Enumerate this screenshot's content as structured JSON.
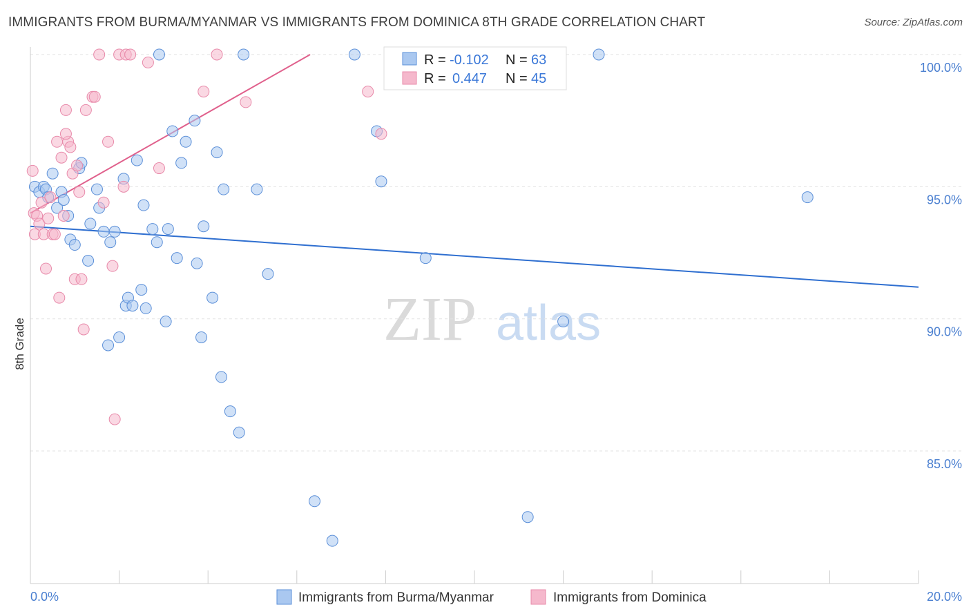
{
  "title": "IMMIGRANTS FROM BURMA/MYANMAR VS IMMIGRANTS FROM DOMINICA 8TH GRADE CORRELATION CHART",
  "source": "Source: ZipAtlas.com",
  "watermark": {
    "part1": "ZIP",
    "part2": "atlas"
  },
  "chart_data": {
    "type": "scatter",
    "xlabel": "",
    "ylabel": "8th Grade",
    "xlim": [
      0,
      20
    ],
    "ylim": [
      80.0,
      101.0
    ],
    "x_ticks": [
      0,
      2,
      4,
      6,
      8,
      10,
      12,
      14,
      16,
      18,
      20
    ],
    "x_tick_labels": [
      {
        "value": 0,
        "label": "0.0%"
      },
      {
        "value": 20,
        "label": "20.0%"
      }
    ],
    "y_ticks": [
      {
        "value": 100,
        "label": "100.0%"
      },
      {
        "value": 95,
        "label": "95.0%"
      },
      {
        "value": 90,
        "label": "90.0%"
      },
      {
        "value": 85,
        "label": "85.0%"
      }
    ],
    "legend": {
      "position": "top-center",
      "rows": [
        {
          "r_label": "R =",
          "r_value": "-0.102",
          "n_label": "N =",
          "n_value": "63",
          "color": "#aac8f0"
        },
        {
          "r_label": "R =",
          "r_value": "0.447",
          "n_label": "N =",
          "n_value": "45",
          "color": "#f5b8cc"
        }
      ]
    },
    "series": [
      {
        "name": "Immigrants from Burma/Myanmar",
        "color": "#5b8fd8",
        "fill": "#aac8f0",
        "trend": {
          "x": [
            0,
            20
          ],
          "y": [
            93.5,
            91.2
          ],
          "color": "#2f6fd0"
        },
        "points": [
          [
            0.1,
            95.0
          ],
          [
            0.2,
            94.8
          ],
          [
            0.3,
            95.0
          ],
          [
            0.35,
            94.9
          ],
          [
            0.4,
            94.6
          ],
          [
            0.5,
            95.5
          ],
          [
            0.6,
            94.2
          ],
          [
            0.7,
            94.8
          ],
          [
            0.75,
            94.5
          ],
          [
            0.85,
            93.9
          ],
          [
            0.9,
            93.0
          ],
          [
            1.0,
            92.8
          ],
          [
            1.1,
            95.7
          ],
          [
            1.15,
            95.9
          ],
          [
            1.3,
            92.2
          ],
          [
            1.35,
            93.6
          ],
          [
            1.5,
            94.9
          ],
          [
            1.55,
            94.2
          ],
          [
            1.65,
            93.3
          ],
          [
            1.75,
            89.0
          ],
          [
            1.8,
            92.9
          ],
          [
            1.9,
            93.3
          ],
          [
            2.0,
            89.3
          ],
          [
            2.1,
            95.3
          ],
          [
            2.15,
            90.5
          ],
          [
            2.2,
            90.8
          ],
          [
            2.3,
            90.5
          ],
          [
            2.4,
            96.0
          ],
          [
            2.5,
            91.1
          ],
          [
            2.55,
            94.3
          ],
          [
            2.6,
            90.4
          ],
          [
            2.75,
            93.4
          ],
          [
            2.85,
            92.9
          ],
          [
            2.9,
            100.0
          ],
          [
            3.05,
            89.9
          ],
          [
            3.1,
            93.4
          ],
          [
            3.2,
            97.1
          ],
          [
            3.3,
            92.3
          ],
          [
            3.4,
            95.9
          ],
          [
            3.5,
            96.7
          ],
          [
            3.7,
            97.5
          ],
          [
            3.75,
            92.1
          ],
          [
            3.85,
            89.3
          ],
          [
            3.9,
            93.5
          ],
          [
            4.1,
            90.8
          ],
          [
            4.2,
            96.3
          ],
          [
            4.3,
            87.8
          ],
          [
            4.35,
            94.9
          ],
          [
            4.5,
            86.5
          ],
          [
            4.7,
            85.7
          ],
          [
            4.8,
            100.0
          ],
          [
            5.1,
            94.9
          ],
          [
            5.35,
            91.7
          ],
          [
            6.4,
            83.1
          ],
          [
            6.8,
            81.6
          ],
          [
            7.3,
            100.0
          ],
          [
            7.8,
            97.1
          ],
          [
            7.9,
            95.2
          ],
          [
            8.9,
            92.3
          ],
          [
            11.2,
            82.5
          ],
          [
            12.0,
            89.9
          ],
          [
            12.8,
            100.0
          ],
          [
            17.5,
            94.6
          ]
        ]
      },
      {
        "name": "Immigrants from Dominica",
        "color": "#e88aaa",
        "fill": "#f5b8cc",
        "trend": {
          "x": [
            0,
            6.3
          ],
          "y": [
            94.0,
            100.0
          ],
          "color": "#e0608c"
        },
        "points": [
          [
            0.05,
            95.6
          ],
          [
            0.08,
            94.0
          ],
          [
            0.1,
            93.2
          ],
          [
            0.15,
            93.9
          ],
          [
            0.2,
            93.6
          ],
          [
            0.25,
            94.4
          ],
          [
            0.3,
            93.2
          ],
          [
            0.35,
            91.9
          ],
          [
            0.4,
            93.8
          ],
          [
            0.45,
            94.6
          ],
          [
            0.5,
            93.2
          ],
          [
            0.55,
            93.2
          ],
          [
            0.6,
            96.7
          ],
          [
            0.65,
            90.8
          ],
          [
            0.7,
            96.1
          ],
          [
            0.75,
            93.9
          ],
          [
            0.8,
            97.9
          ],
          [
            0.85,
            96.7
          ],
          [
            0.9,
            96.5
          ],
          [
            0.95,
            95.5
          ],
          [
            1.0,
            91.5
          ],
          [
            1.05,
            95.8
          ],
          [
            1.1,
            94.8
          ],
          [
            1.15,
            91.5
          ],
          [
            1.2,
            89.6
          ],
          [
            1.25,
            97.9
          ],
          [
            1.4,
            98.4
          ],
          [
            1.45,
            98.4
          ],
          [
            1.55,
            100.0
          ],
          [
            1.65,
            94.4
          ],
          [
            1.75,
            96.7
          ],
          [
            1.85,
            92.0
          ],
          [
            1.9,
            86.2
          ],
          [
            2.0,
            100.0
          ],
          [
            2.1,
            95.0
          ],
          [
            2.15,
            100.0
          ],
          [
            2.25,
            100.0
          ],
          [
            2.65,
            99.7
          ],
          [
            2.9,
            95.7
          ],
          [
            3.9,
            98.6
          ],
          [
            4.2,
            100.0
          ],
          [
            4.85,
            98.2
          ],
          [
            7.6,
            98.6
          ],
          [
            7.9,
            97.0
          ],
          [
            0.8,
            97.0
          ]
        ]
      }
    ]
  }
}
